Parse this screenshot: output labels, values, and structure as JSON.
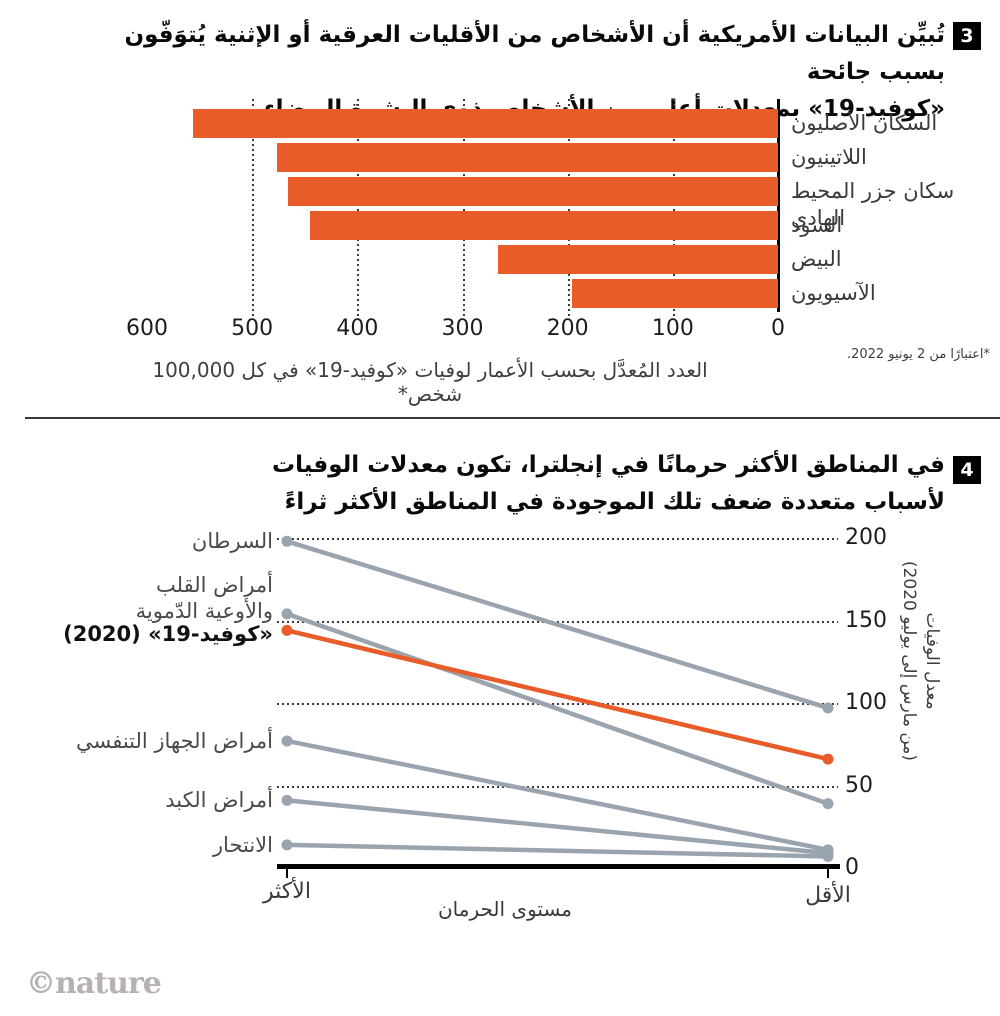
{
  "brand": {
    "logo": "©nature",
    "accent_orange": "#E75C28",
    "line_gray": "#9AA4AF"
  },
  "chart_data": [
    {
      "type": "bar",
      "panel_number": "3",
      "title_lines": [
        "تُبيِّن البيانات الأمريكية أن الأشخاص من الأقليات العرقية أو الإثنية يُتوَفّون بسبب جائحة",
        "«كوفيد-19» بمعدلات أعلى من الأشخاص ذوي البشرة البيضاء"
      ],
      "categories": [
        "السكان الأصليون",
        "اللاتينيون",
        "سكان جزر المحيط الهادي",
        "السود",
        "البيض",
        "الآسيويون"
      ],
      "values": [
        556,
        476,
        466,
        445,
        266,
        196
      ],
      "xticks": [
        600,
        500,
        400,
        300,
        200,
        100,
        0
      ],
      "gridline_ticks": [
        500,
        400,
        300,
        200,
        100
      ],
      "xlim": [
        600,
        0
      ],
      "bar_color": "#E75C28",
      "caption": "العدد المُعدَّل بحسب الأعمار لوفيات «كوفيد-19» في كل 100,000 شخص*",
      "footnote": "*اعتبارًا من 2 يونيو 2022."
    },
    {
      "type": "line",
      "panel_number": "4",
      "title_lines": [
        "في المناطق الأكثر حرمانًا في إنجلترا، تكون معدلات الوفيات",
        "لأسباب متعددة ضعف تلك الموجودة في المناطق الأكثر ثراءً"
      ],
      "x_categories": [
        "الأكثر",
        "الأقل"
      ],
      "xlabel": "مستوى الحرمان",
      "ylabel_lines": [
        "معدل الوفيات",
        "(من مارس إلى يوليو 2020)"
      ],
      "yticks": [
        0,
        50,
        100,
        150,
        200
      ],
      "ylim": [
        0,
        210
      ],
      "series": [
        {
          "name": "السرطان",
          "label_lines": [
            "السرطان"
          ],
          "values": [
            198,
            97
          ],
          "color": "#9AA4AF",
          "bold": false
        },
        {
          "name": "أمراض القلب والأوعية الدّموية",
          "label_lines": [
            "أمراض القلب",
            "والأوعية الدّموية"
          ],
          "values": [
            154,
            39
          ],
          "color": "#9AA4AF",
          "bold": false
        },
        {
          "name": "«كوفيد-19» (2020)",
          "label_lines": [
            "«كوفيد-19» (2020)"
          ],
          "values": [
            144,
            66
          ],
          "color": "#E75C28",
          "bold": true
        },
        {
          "name": "أمراض الجهاز التنفسي",
          "label_lines": [
            "أمراض الجهاز التنفسي"
          ],
          "values": [
            77,
            11
          ],
          "color": "#9AA4AF",
          "bold": false
        },
        {
          "name": "أمراض الكبد",
          "label_lines": [
            "أمراض الكبد"
          ],
          "values": [
            41,
            9
          ],
          "color": "#9AA4AF",
          "bold": false
        },
        {
          "name": "الانتحار",
          "label_lines": [
            "الانتحار"
          ],
          "values": [
            14,
            7
          ],
          "color": "#9AA4AF",
          "bold": false
        }
      ]
    }
  ]
}
